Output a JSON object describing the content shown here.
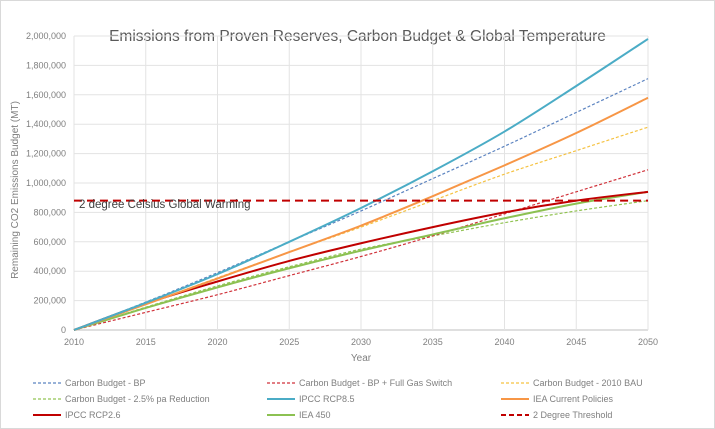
{
  "chart_data": {
    "type": "line",
    "title": "Emissions from Proven Reserves, Carbon Budget & Global Temperature",
    "xlabel": "Year",
    "ylabel": "Remaining CO2 Emissions Budget (MT)",
    "xlim": [
      2010,
      2050
    ],
    "ylim": [
      0,
      2000000
    ],
    "x_ticks": [
      "2010",
      "2015",
      "2020",
      "2025",
      "2030",
      "2035",
      "2040",
      "2045",
      "2050"
    ],
    "y_ticks": [
      "0",
      "200,000",
      "400,000",
      "600,000",
      "800,000",
      "1,000,000",
      "1,200,000",
      "1,400,000",
      "1,600,000",
      "1,800,000",
      "2,000,000"
    ],
    "grid": true,
    "legend_position": "bottom",
    "annotation": "2 degree Celsius Global Warming",
    "x": [
      2010,
      2015,
      2020,
      2025,
      2030,
      2035,
      2040,
      2045,
      2050
    ],
    "series": [
      {
        "name": "Carbon Budget - BP",
        "color": "#5b83c0",
        "style": "dotted",
        "values": [
          0,
          190000,
          390000,
          600000,
          810000,
          1030000,
          1250000,
          1480000,
          1710000
        ]
      },
      {
        "name": "Carbon Budget - BP + Full Gas Switch",
        "color": "#d0323a",
        "style": "dotted",
        "values": [
          0,
          120000,
          240000,
          370000,
          500000,
          640000,
          790000,
          940000,
          1090000
        ]
      },
      {
        "name": "Carbon Budget - 2010 BAU",
        "color": "#f5c242",
        "style": "dotted",
        "values": [
          0,
          175000,
          355000,
          530000,
          700000,
          880000,
          1060000,
          1220000,
          1380000
        ]
      },
      {
        "name": "Carbon Budget - 2.5% pa Reduction",
        "color": "#92c353",
        "style": "dotted",
        "values": [
          0,
          155000,
          300000,
          430000,
          550000,
          640000,
          730000,
          810000,
          880000
        ]
      },
      {
        "name": "IPCC RCP8.5",
        "color": "#4bacc6",
        "style": "solid",
        "values": [
          0,
          185000,
          380000,
          600000,
          830000,
          1080000,
          1350000,
          1660000,
          1980000
        ]
      },
      {
        "name": "IEA Current Policies",
        "color": "#f79646",
        "style": "solid",
        "values": [
          0,
          175000,
          350000,
          530000,
          710000,
          910000,
          1120000,
          1340000,
          1580000
        ]
      },
      {
        "name": "IPCC RCP2.6",
        "color": "#c00000",
        "style": "solid",
        "values": [
          0,
          180000,
          330000,
          470000,
          590000,
          700000,
          800000,
          880000,
          940000
        ]
      },
      {
        "name": "IEA 450",
        "color": "#8cc152",
        "style": "solid",
        "values": [
          0,
          150000,
          290000,
          420000,
          540000,
          650000,
          760000,
          860000,
          940000
        ]
      },
      {
        "name": "2 Degree Threshold",
        "color": "#c00000",
        "style": "dashed",
        "values": [
          880000,
          880000,
          880000,
          880000,
          880000,
          880000,
          880000,
          880000,
          880000
        ]
      }
    ]
  }
}
